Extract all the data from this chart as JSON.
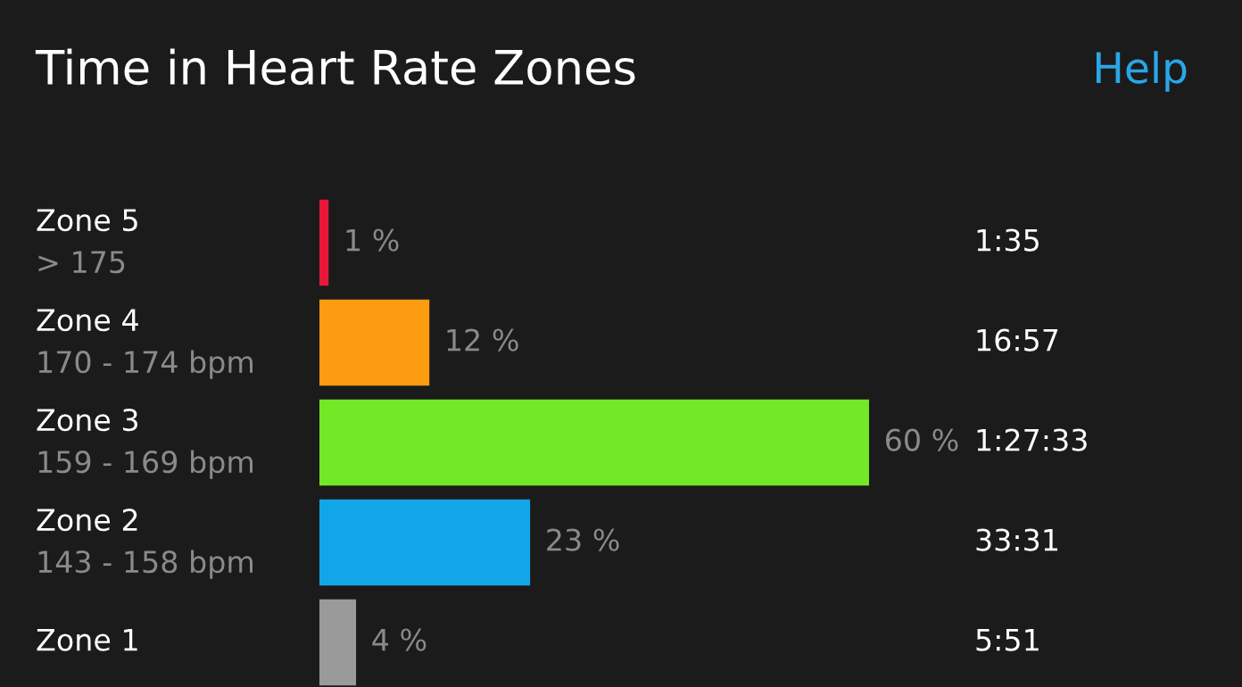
{
  "chart_data": {
    "type": "bar",
    "orientation": "horizontal",
    "title": "Time in Heart Rate Zones",
    "categories": [
      "Zone 5\n> 175",
      "Zone 4\n170 - 174 bpm",
      "Zone 3\n159 - 169 bpm",
      "Zone 2\n143 - 158 bpm",
      "Zone 1"
    ],
    "values": [
      1,
      12,
      60,
      23,
      4
    ],
    "colors": [
      "#e8173a",
      "#fd9b11",
      "#72e826",
      "#12a6e8",
      "#9a9a9a"
    ],
    "value_labels": [
      "1 %",
      "12 %",
      "60 %",
      "23 %",
      "4 %"
    ],
    "annotations": [
      "Help",
      "1:35",
      "16:57",
      "1:27:33",
      "33:31",
      "5:51"
    ],
    "grid": false,
    "legend": false
  }
}
